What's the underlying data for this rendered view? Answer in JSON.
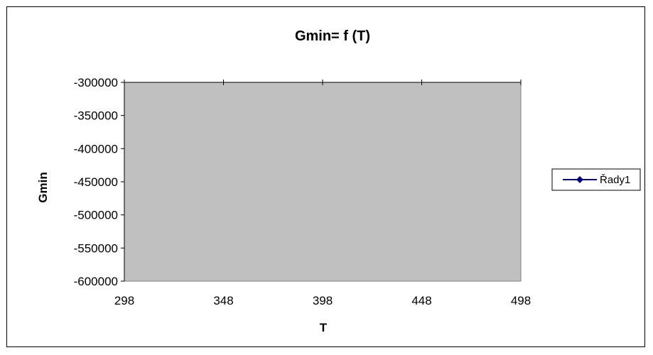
{
  "chart_data": {
    "type": "line",
    "title": "Gmin= f (T)",
    "xlabel": "T",
    "ylabel": "Gmin",
    "xlim": [
      298,
      498
    ],
    "ylim": [
      -600000,
      -300000
    ],
    "x_ticks": [
      298,
      348,
      398,
      448,
      498
    ],
    "y_ticks": [
      -300000,
      -350000,
      -400000,
      -450000,
      -500000,
      -550000,
      -600000
    ],
    "x_tick_labels": [
      "298",
      "348",
      "398",
      "448",
      "498"
    ],
    "y_tick_labels": [
      "-300000",
      "-350000",
      "-400000",
      "-450000",
      "-500000",
      "-550000",
      "-600000"
    ],
    "series": [
      {
        "name": "Řady1",
        "color": "#000080",
        "marker": "diamond",
        "x": [],
        "y": []
      }
    ],
    "plot_background": "#c0c0c0",
    "legend_position": "right",
    "grid": false
  }
}
